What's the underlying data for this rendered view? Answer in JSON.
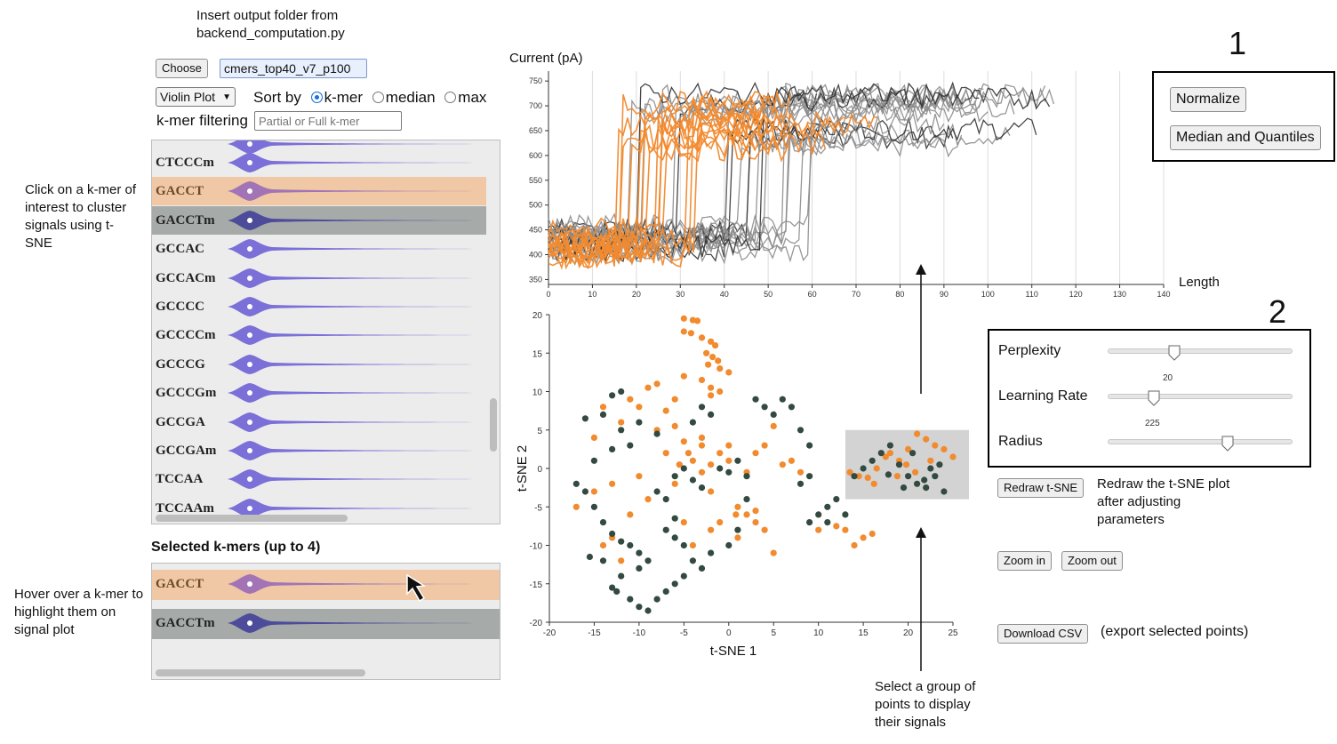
{
  "annotations": {
    "insert_folder": "Insert output folder from backend_computation.py",
    "click_kmer": "Click on a k-mer of interest to cluster signals using t-SNE",
    "hover_kmer": "Hover over a k-mer to highlight them on signal plot",
    "select_group": "Select a group of points to display their signals",
    "redraw_note": "Redraw the t-SNE plot after adjusting parameters",
    "box1_number": "1",
    "box2_number": "2"
  },
  "controls": {
    "choose_label": "Choose",
    "folder_value": "cmers_top40_v7_p100",
    "plot_type_value": "Violin Plot",
    "sort_by_label": "Sort by",
    "sort_options": [
      "k-mer",
      "median",
      "max"
    ],
    "sort_selected": "k-mer",
    "filter_label": "k-mer filtering",
    "filter_placeholder": "Partial or Full k-mer"
  },
  "kmer_list": {
    "items": [
      "CTCCCm",
      "GACCT",
      "GACCTm",
      "GCCAC",
      "GCCACm",
      "GCCCC",
      "GCCCCm",
      "GCCCG",
      "GCCCGm",
      "GCCGA",
      "GCCGAm",
      "TCCAA",
      "TCCAAm"
    ],
    "highlighted": {
      "GACCT": "#f0c8a5",
      "GACCTm": "#a6aaa8"
    }
  },
  "selected": {
    "title": "Selected k-mers (up to 4)",
    "items": [
      "GACCT",
      "GACCTm"
    ]
  },
  "signal_plot": {
    "ylabel": "Current (pA)",
    "xlabel": "Length",
    "yticks": [
      350,
      400,
      450,
      500,
      550,
      600,
      650,
      700,
      750
    ],
    "xticks": [
      0,
      10,
      20,
      30,
      40,
      50,
      60,
      70,
      80,
      90,
      100,
      110,
      120,
      130,
      140
    ]
  },
  "tsne_plot": {
    "xlabel": "t-SNE 1",
    "ylabel": "t-SNE 2",
    "xticks": [
      -20,
      -15,
      -10,
      -5,
      0,
      5,
      10,
      15,
      20,
      25
    ],
    "yticks": [
      20,
      15,
      10,
      5,
      0,
      -5,
      -10,
      -15,
      -20
    ]
  },
  "box1": {
    "normalize_label": "Normalize",
    "median_label": "Median and Quantiles"
  },
  "box2": {
    "perplexity_label": "Perplexity",
    "perplexity_value": "20",
    "learning_rate_label": "Learning Rate",
    "learning_rate_value": "225",
    "radius_label": "Radius",
    "radius_fraction": 0.65,
    "perplexity_fraction": 0.36,
    "learning_rate_fraction": 0.25
  },
  "buttons": {
    "redraw_label": "Redraw t-SNE",
    "zoom_in_label": "Zoom in",
    "zoom_out_label": "Zoom out",
    "download_label": "Download CSV",
    "export_note": "(export selected points)"
  },
  "colors": {
    "orange": "#f28a2e",
    "dark": "#334a40",
    "violin": "#7b6fd8",
    "highlight_orange": "#f0c8a5",
    "highlight_gray": "#a6aaa8"
  },
  "chart_data": [
    {
      "type": "line",
      "xlabel": "Length",
      "ylabel": "Current (pA)",
      "xlim": [
        0,
        140
      ],
      "ylim": [
        340,
        770
      ],
      "series": [
        {
          "color": "#f28a2e",
          "values": "signals of selected k-mer GACCT"
        },
        {
          "color": "#888888",
          "values": "signals of selected k-mer GACCTm"
        }
      ]
    },
    {
      "type": "scatter",
      "xlabel": "t-SNE 1",
      "ylabel": "t-SNE 2",
      "xlim": [
        -20,
        25
      ],
      "ylim": [
        -20,
        20
      ],
      "series": [
        {
          "color": "#f28a2e",
          "points": [
            [
              -5,
              19.5
            ],
            [
              -4,
              19.3
            ],
            [
              -3.5,
              19.2
            ],
            [
              -5,
              17.8
            ],
            [
              -4.2,
              17.6
            ],
            [
              -3,
              17
            ],
            [
              -2,
              16.5
            ],
            [
              -1.5,
              16
            ],
            [
              -2.5,
              15
            ],
            [
              -1.8,
              14.5
            ],
            [
              -1.2,
              14
            ],
            [
              -2.3,
              13.5
            ],
            [
              -1,
              13
            ],
            [
              0,
              12.5
            ],
            [
              -5,
              12
            ],
            [
              -8,
              11
            ],
            [
              -9,
              10.5
            ],
            [
              -11,
              9
            ],
            [
              -14,
              8
            ],
            [
              -3,
              11.5
            ],
            [
              -2,
              10.5
            ],
            [
              -2,
              9.5
            ],
            [
              -1,
              10
            ],
            [
              -6,
              9
            ],
            [
              -7,
              7.5
            ],
            [
              -10,
              8
            ],
            [
              -12,
              6
            ],
            [
              -15,
              4
            ],
            [
              -8,
              5
            ],
            [
              -6,
              5.5
            ],
            [
              -5,
              3.5
            ],
            [
              -3,
              3
            ],
            [
              -4.5,
              2
            ],
            [
              -7,
              2
            ],
            [
              -5.5,
              0.5
            ],
            [
              -4,
              1
            ],
            [
              -3,
              -0.5
            ],
            [
              -2,
              0.5
            ],
            [
              -1,
              2
            ],
            [
              0,
              3
            ],
            [
              -3,
              4
            ],
            [
              -6,
              -2
            ],
            [
              -2,
              -3
            ],
            [
              0,
              1
            ],
            [
              2,
              -0.5
            ],
            [
              3,
              2
            ],
            [
              4,
              3
            ],
            [
              5,
              5.5
            ],
            [
              7,
              1
            ],
            [
              6,
              0.5
            ],
            [
              8,
              -0.5
            ],
            [
              1,
              -5
            ],
            [
              2,
              -6
            ],
            [
              3,
              -5.5
            ],
            [
              -1,
              -7
            ],
            [
              -2,
              -8
            ],
            [
              -4,
              -10
            ],
            [
              -5,
              -7
            ],
            [
              3,
              -7
            ],
            [
              4,
              -8
            ],
            [
              1,
              -9
            ],
            [
              5,
              -11
            ],
            [
              -13,
              -9
            ],
            [
              -14,
              -10
            ],
            [
              -12,
              -12
            ],
            [
              -15,
              -3
            ],
            [
              -17,
              -5
            ],
            [
              -11,
              -6
            ],
            [
              -9,
              -4
            ],
            [
              -13,
              -2
            ],
            [
              -10,
              -1
            ],
            [
              0.8,
              -6
            ],
            [
              10,
              -8
            ],
            [
              12,
              -7.5
            ],
            [
              13,
              -8
            ],
            [
              15,
              -9
            ],
            [
              14,
              -10
            ],
            [
              16,
              -8.5
            ],
            [
              13.5,
              -0.5
            ],
            [
              14.5,
              -1
            ],
            [
              15.5,
              -1.2
            ],
            [
              16.5,
              0
            ],
            [
              17.5,
              1.5
            ],
            [
              18,
              2
            ],
            [
              19,
              1
            ],
            [
              20,
              2.5
            ],
            [
              21,
              4.5
            ],
            [
              22,
              3.8
            ],
            [
              23,
              3
            ],
            [
              24,
              2.5
            ],
            [
              25,
              1.5
            ],
            [
              22.5,
              1
            ],
            [
              20.8,
              -0.5
            ],
            [
              19.8,
              0.5
            ],
            [
              18.8,
              -1
            ],
            [
              16.2,
              -2
            ]
          ]
        },
        {
          "color": "#334a40",
          "points": [
            [
              -12,
              10
            ],
            [
              -13,
              9.5
            ],
            [
              -14,
              7
            ],
            [
              -16,
              6.5
            ],
            [
              -12,
              5
            ],
            [
              -10,
              6
            ],
            [
              -8,
              4.5
            ],
            [
              -11,
              3
            ],
            [
              -13,
              2.5
            ],
            [
              -15,
              1
            ],
            [
              -17,
              -2
            ],
            [
              -16,
              -3
            ],
            [
              -15,
              -5
            ],
            [
              -14,
              -7
            ],
            [
              -13,
              -8.5
            ],
            [
              -12,
              -9.5
            ],
            [
              -11,
              -10
            ],
            [
              -10,
              -11
            ],
            [
              -9,
              -12
            ],
            [
              -10,
              -13
            ],
            [
              -12,
              -14
            ],
            [
              -13,
              -15.5
            ],
            [
              -14,
              -12
            ],
            [
              -15.5,
              -11.5
            ],
            [
              -12.5,
              -16
            ],
            [
              -11,
              -17
            ],
            [
              -10,
              -18
            ],
            [
              -9,
              -18.5
            ],
            [
              -8,
              -17
            ],
            [
              -7,
              -16
            ],
            [
              -6,
              -15
            ],
            [
              -5,
              -14
            ],
            [
              -4,
              -12
            ],
            [
              -5,
              -10
            ],
            [
              -6,
              -9
            ],
            [
              -7,
              -8
            ],
            [
              -6,
              -6.5
            ],
            [
              -7,
              -4
            ],
            [
              -8,
              -3
            ],
            [
              -6,
              -1
            ],
            [
              -5,
              0
            ],
            [
              -4,
              -1.5
            ],
            [
              -3,
              -2.5
            ],
            [
              -1,
              0
            ],
            [
              0,
              -0.5
            ],
            [
              1,
              1
            ],
            [
              2,
              -1
            ],
            [
              -3,
              8
            ],
            [
              -4,
              6
            ],
            [
              -2,
              7
            ],
            [
              3,
              9
            ],
            [
              4,
              8
            ],
            [
              5,
              7
            ],
            [
              6,
              9
            ],
            [
              7,
              8
            ],
            [
              8,
              5
            ],
            [
              9,
              3
            ],
            [
              9,
              -1
            ],
            [
              8,
              -2
            ],
            [
              10,
              -6
            ],
            [
              11,
              -5
            ],
            [
              12,
              -4
            ],
            [
              13,
              -6
            ],
            [
              11,
              -7
            ],
            [
              9,
              -7
            ],
            [
              2,
              -4
            ],
            [
              1,
              -8
            ],
            [
              0,
              -10
            ],
            [
              -2,
              -11
            ],
            [
              -3,
              -13
            ],
            [
              15,
              0
            ],
            [
              16,
              1
            ],
            [
              17,
              2
            ],
            [
              18,
              3
            ],
            [
              19,
              0.5
            ],
            [
              20,
              -1
            ],
            [
              21,
              -2
            ],
            [
              22,
              -2.5
            ],
            [
              23,
              -1
            ],
            [
              24,
              -3
            ],
            [
              20.5,
              2
            ],
            [
              19.5,
              -2.5
            ],
            [
              14,
              -1
            ],
            [
              17.8,
              -0.8
            ],
            [
              21.8,
              -1.5
            ],
            [
              22.5,
              0
            ],
            [
              23.5,
              0.5
            ]
          ]
        }
      ]
    }
  ]
}
